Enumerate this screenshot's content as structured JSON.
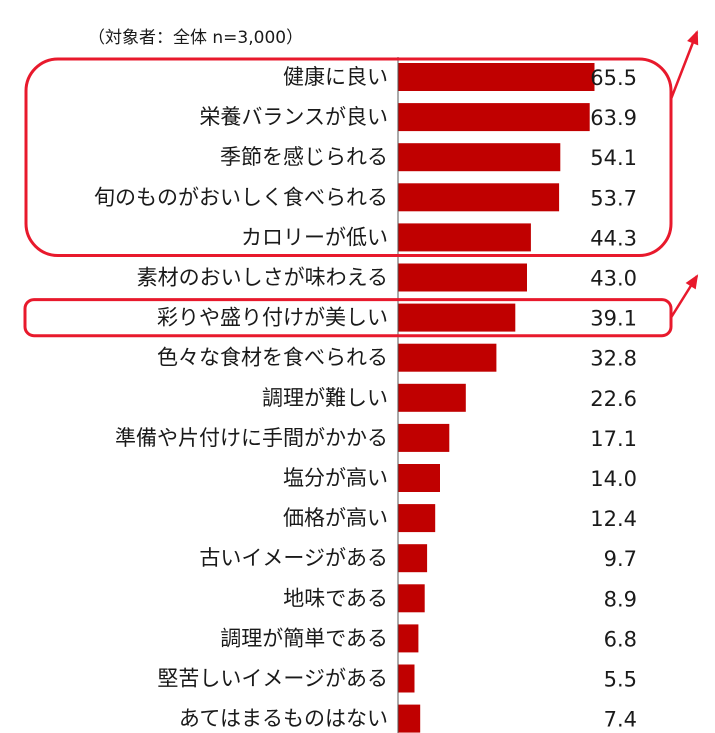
{
  "chart_data": {
    "type": "bar",
    "orientation": "horizontal",
    "subtitle": "（対象者：全体 n=3,000）",
    "categories": [
      "健康に良い",
      "栄養バランスが良い",
      "季節を感じられる",
      "旬のものがおいしく食べられる",
      "カロリーが低い",
      "素材のおいしさが味わえる",
      "彩りや盛り付けが美しい",
      "色々な食材を食べられる",
      "調理が難しい",
      "準備や片付けに手間がかかる",
      "塩分が高い",
      "価格が高い",
      "古いイメージがある",
      "地味である",
      "調理が簡単である",
      "堅苦しいイメージがある",
      "あてはまるものはない"
    ],
    "values": [
      65.5,
      63.9,
      54.1,
      53.7,
      44.3,
      43.0,
      39.1,
      32.8,
      22.6,
      17.1,
      14.0,
      12.4,
      9.7,
      8.9,
      6.8,
      5.5,
      7.4
    ],
    "value_labels": [
      "65.5",
      "63.9",
      "54.1",
      "53.7",
      "44.3",
      "43.0",
      "39.1",
      "32.8",
      "22.6",
      "17.1",
      "14.0",
      "12.4",
      "9.7",
      "8.9",
      "6.8",
      "5.5",
      "7.4"
    ],
    "bar_color": "#c00000",
    "highlight_color": "#e8192c",
    "highlight_groups": [
      {
        "from_category": "健康に良い",
        "to_category": "カロリーが低い"
      },
      {
        "from_category": "彩りや盛り付けが美しい",
        "to_category": "彩りや盛り付けが美しい"
      }
    ],
    "xlabel": "",
    "ylabel": "",
    "grid": false,
    "legend": "none"
  }
}
